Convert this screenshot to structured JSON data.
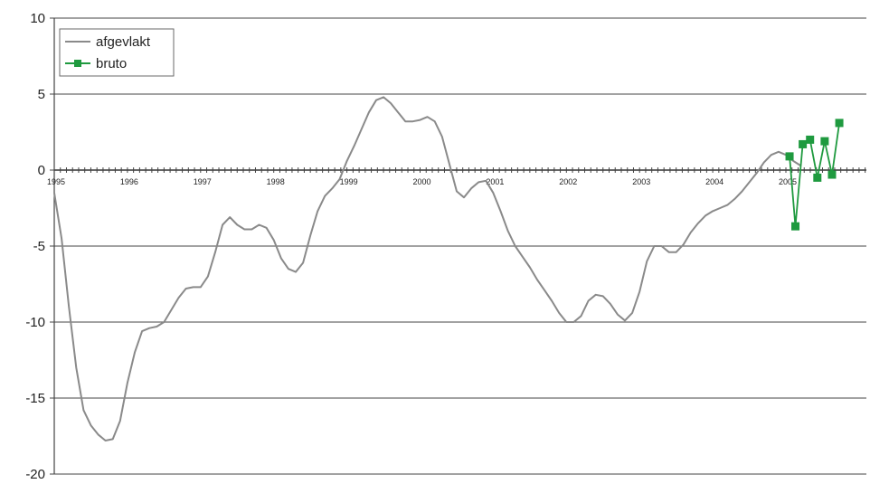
{
  "chart_data": {
    "type": "line",
    "title": "",
    "xlabel": "",
    "ylabel": "",
    "ylim": [
      -20,
      10
    ],
    "yticks": [
      10,
      5,
      0,
      -5,
      -10,
      -15,
      -20
    ],
    "xlim": [
      1995,
      2006.1
    ],
    "xticks": [
      1995,
      1996,
      1997,
      1998,
      1999,
      2000,
      2001,
      2002,
      2003,
      2004,
      2005
    ],
    "xtick_labels": [
      "1995",
      "1996",
      "1997",
      "1998",
      "1999",
      "2000",
      "2001",
      "2002",
      "2003",
      "2004",
      "2005"
    ],
    "grid": "horizontal",
    "legend_position": "top-left",
    "series": [
      {
        "name": "afgevlakt",
        "color": "#8a8a8a",
        "marker": "none",
        "points": [
          [
            1995.0,
            -1.5
          ],
          [
            1995.1,
            -4.5
          ],
          [
            1995.2,
            -9.0
          ],
          [
            1995.3,
            -13.0
          ],
          [
            1995.4,
            -15.8
          ],
          [
            1995.5,
            -16.8
          ],
          [
            1995.6,
            -17.4
          ],
          [
            1995.7,
            -17.8
          ],
          [
            1995.8,
            -17.7
          ],
          [
            1995.9,
            -16.5
          ],
          [
            1996.0,
            -14.0
          ],
          [
            1996.1,
            -12.0
          ],
          [
            1996.2,
            -10.6
          ],
          [
            1996.3,
            -10.4
          ],
          [
            1996.4,
            -10.3
          ],
          [
            1996.5,
            -10.0
          ],
          [
            1996.6,
            -9.2
          ],
          [
            1996.7,
            -8.4
          ],
          [
            1996.8,
            -7.8
          ],
          [
            1996.9,
            -7.7
          ],
          [
            1997.0,
            -7.7
          ],
          [
            1997.1,
            -7.0
          ],
          [
            1997.2,
            -5.4
          ],
          [
            1997.3,
            -3.6
          ],
          [
            1997.4,
            -3.1
          ],
          [
            1997.5,
            -3.6
          ],
          [
            1997.6,
            -3.9
          ],
          [
            1997.7,
            -3.9
          ],
          [
            1997.8,
            -3.6
          ],
          [
            1997.9,
            -3.8
          ],
          [
            1998.0,
            -4.6
          ],
          [
            1998.1,
            -5.8
          ],
          [
            1998.2,
            -6.5
          ],
          [
            1998.3,
            -6.7
          ],
          [
            1998.4,
            -6.1
          ],
          [
            1998.5,
            -4.3
          ],
          [
            1998.6,
            -2.7
          ],
          [
            1998.7,
            -1.7
          ],
          [
            1998.8,
            -1.2
          ],
          [
            1998.9,
            -0.6
          ],
          [
            1999.0,
            0.6
          ],
          [
            1999.1,
            1.6
          ],
          [
            1999.2,
            2.7
          ],
          [
            1999.3,
            3.8
          ],
          [
            1999.4,
            4.6
          ],
          [
            1999.5,
            4.8
          ],
          [
            1999.6,
            4.4
          ],
          [
            1999.7,
            3.8
          ],
          [
            1999.8,
            3.2
          ],
          [
            1999.9,
            3.2
          ],
          [
            2000.0,
            3.3
          ],
          [
            2000.1,
            3.5
          ],
          [
            2000.2,
            3.2
          ],
          [
            2000.3,
            2.2
          ],
          [
            2000.4,
            0.4
          ],
          [
            2000.5,
            -1.4
          ],
          [
            2000.6,
            -1.8
          ],
          [
            2000.7,
            -1.2
          ],
          [
            2000.8,
            -0.8
          ],
          [
            2000.9,
            -0.7
          ],
          [
            2001.0,
            -1.5
          ],
          [
            2001.1,
            -2.7
          ],
          [
            2001.2,
            -4.0
          ],
          [
            2001.3,
            -5.0
          ],
          [
            2001.4,
            -5.7
          ],
          [
            2001.5,
            -6.4
          ],
          [
            2001.6,
            -7.2
          ],
          [
            2001.7,
            -7.9
          ],
          [
            2001.8,
            -8.6
          ],
          [
            2001.9,
            -9.4
          ],
          [
            2002.0,
            -10.0
          ],
          [
            2002.1,
            -10.0
          ],
          [
            2002.2,
            -9.6
          ],
          [
            2002.3,
            -8.6
          ],
          [
            2002.4,
            -8.2
          ],
          [
            2002.5,
            -8.3
          ],
          [
            2002.6,
            -8.8
          ],
          [
            2002.7,
            -9.5
          ],
          [
            2002.8,
            -9.9
          ],
          [
            2002.9,
            -9.4
          ],
          [
            2003.0,
            -8.0
          ],
          [
            2003.1,
            -6.0
          ],
          [
            2003.2,
            -5.0
          ],
          [
            2003.3,
            -5.0
          ],
          [
            2003.4,
            -5.4
          ],
          [
            2003.5,
            -5.4
          ],
          [
            2003.6,
            -4.9
          ],
          [
            2003.7,
            -4.1
          ],
          [
            2003.8,
            -3.5
          ],
          [
            2003.9,
            -3.0
          ],
          [
            2004.0,
            -2.7
          ],
          [
            2004.1,
            -2.5
          ],
          [
            2004.2,
            -2.3
          ],
          [
            2004.3,
            -1.9
          ],
          [
            2004.4,
            -1.4
          ],
          [
            2004.5,
            -0.8
          ],
          [
            2004.6,
            -0.2
          ],
          [
            2004.7,
            0.5
          ],
          [
            2004.8,
            1.0
          ],
          [
            2004.9,
            1.2
          ],
          [
            2005.0,
            1.0
          ],
          [
            2005.1,
            0.6
          ],
          [
            2005.2,
            0.3
          ]
        ]
      },
      {
        "name": "bruto",
        "color": "#1f9a3f",
        "marker": "square",
        "points": [
          [
            2005.05,
            0.9
          ],
          [
            2005.13,
            -3.7
          ],
          [
            2005.23,
            1.7
          ],
          [
            2005.33,
            2.0
          ],
          [
            2005.43,
            -0.5
          ],
          [
            2005.53,
            1.9
          ],
          [
            2005.63,
            -0.3
          ],
          [
            2005.73,
            3.1
          ]
        ]
      }
    ]
  }
}
